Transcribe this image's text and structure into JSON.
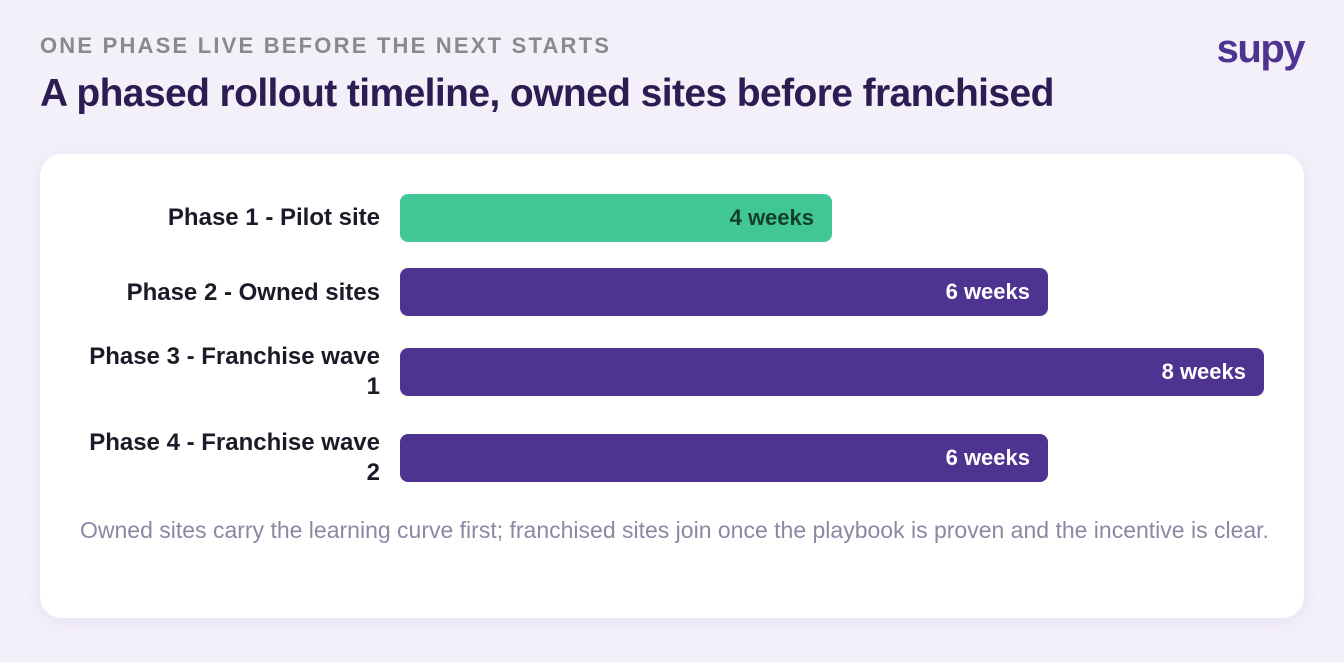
{
  "header": {
    "eyebrow": "ONE PHASE LIVE BEFORE THE NEXT STARTS",
    "title": "A phased rollout timeline, owned sites before franchised",
    "logo_text": "supy"
  },
  "colors": {
    "pilot": "#40c795",
    "phase": "#4f3391",
    "pilot_label": "#143d2c",
    "phase_label": "#ffffff"
  },
  "chart_data": {
    "type": "bar",
    "orientation": "horizontal",
    "categories": [
      "Phase 1 - Pilot site",
      "Phase 2 - Owned sites",
      "Phase 3 - Franchise wave 1",
      "Phase 4 - Franchise wave 2"
    ],
    "values": [
      4,
      6,
      8,
      6
    ],
    "unit": "weeks",
    "value_labels": [
      "4 weeks",
      "6 weeks",
      "8 weeks",
      "6 weeks"
    ],
    "xlim": [
      0,
      8
    ],
    "bar_colors": [
      "#40c795",
      "#4f3391",
      "#4f3391",
      "#4f3391"
    ],
    "grid": false,
    "legend": "none"
  },
  "footnote": "Owned sites carry the learning curve first; franchised sites join once the playbook is proven and the incentive is clear."
}
